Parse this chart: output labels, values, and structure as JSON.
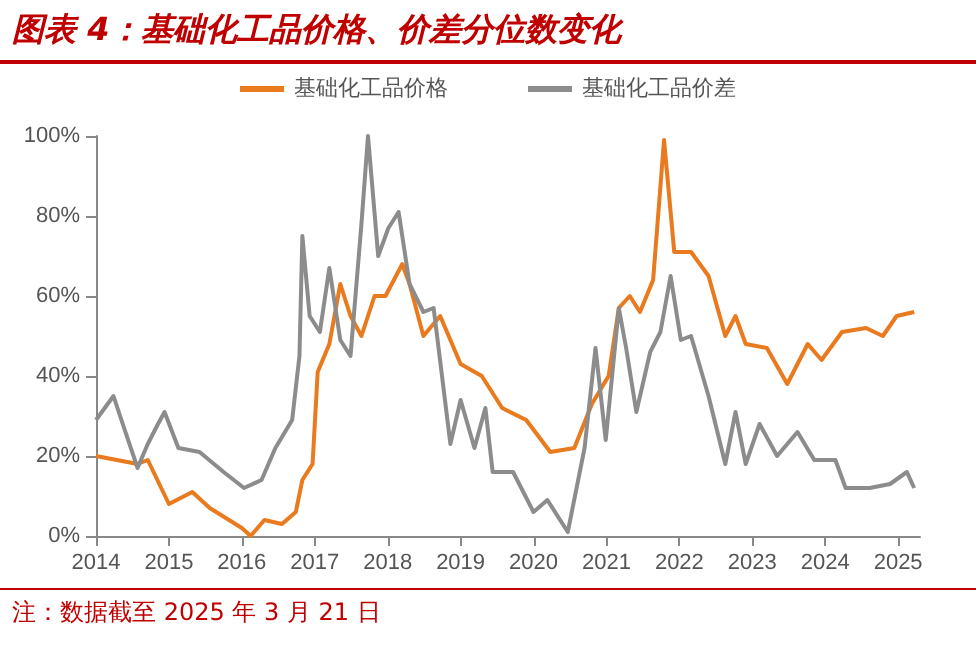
{
  "chart_data": {
    "type": "line",
    "title": "图表 4：基础化工品价格、价差分位数变化",
    "annotations": [
      "注：数据截至 2025 年 3 月 21 日"
    ],
    "xlim": [
      2014,
      2025.3
    ],
    "xticks": [
      2014,
      2015,
      2016,
      2017,
      2018,
      2019,
      2020,
      2021,
      2022,
      2023,
      2024,
      2025
    ],
    "ylim": [
      0,
      100
    ],
    "yticks": [
      {
        "value": 0,
        "label": "0%"
      },
      {
        "value": 20,
        "label": "20%"
      },
      {
        "value": 40,
        "label": "40%"
      },
      {
        "value": 60,
        "label": "60%"
      },
      {
        "value": 80,
        "label": "80%"
      },
      {
        "value": 100,
        "label": "100%"
      }
    ],
    "grid": false,
    "legend": "top",
    "marker": "none",
    "line_style": "solid",
    "series": [
      {
        "name": "基础化工品价格",
        "color": "#e97a1e",
        "x": [
          2014.0,
          2014.57,
          2014.71,
          2015.0,
          2015.32,
          2015.56,
          2016.0,
          2016.12,
          2016.31,
          2016.55,
          2016.74,
          2016.83,
          2016.97,
          2017.04,
          2017.2,
          2017.35,
          2017.49,
          2017.64,
          2017.82,
          2017.97,
          2018.2,
          2018.3,
          2018.49,
          2018.72,
          2019.0,
          2019.29,
          2019.57,
          2019.9,
          2020.23,
          2020.56,
          2020.8,
          2021.03,
          2021.17,
          2021.32,
          2021.46,
          2021.64,
          2021.79,
          2021.93,
          2022.16,
          2022.4,
          2022.63,
          2022.77,
          2022.91,
          2023.2,
          2023.48,
          2023.76,
          2023.95,
          2024.23,
          2024.56,
          2024.79,
          2024.98,
          2025.22
        ],
        "values": [
          20,
          18,
          19,
          8,
          11,
          7,
          2,
          0,
          4,
          3,
          6,
          14,
          18,
          41,
          48,
          63,
          55,
          50,
          60,
          60,
          68,
          63,
          50,
          55,
          43,
          40,
          32,
          29,
          21,
          22,
          33,
          40,
          57,
          60,
          56,
          64,
          99,
          71,
          71,
          65,
          50,
          55,
          48,
          47,
          38,
          48,
          44,
          51,
          52,
          50,
          55,
          56
        ]
      },
      {
        "name": "基础化工品价差",
        "color": "#8c8c8c",
        "x": [
          2014.0,
          2014.24,
          2014.33,
          2014.57,
          2014.71,
          2014.85,
          2014.94,
          2015.13,
          2015.42,
          2015.75,
          2016.03,
          2016.27,
          2016.46,
          2016.69,
          2016.79,
          2016.83,
          2016.93,
          2017.07,
          2017.2,
          2017.35,
          2017.49,
          2017.64,
          2017.73,
          2017.87,
          2018.01,
          2018.15,
          2018.3,
          2018.49,
          2018.63,
          2018.86,
          2019.0,
          2019.19,
          2019.34,
          2019.44,
          2019.72,
          2020.0,
          2020.19,
          2020.47,
          2020.7,
          2020.85,
          2020.99,
          2021.17,
          2021.27,
          2021.41,
          2021.6,
          2021.74,
          2021.88,
          2022.02,
          2022.16,
          2022.4,
          2022.63,
          2022.77,
          2022.91,
          2023.1,
          2023.34,
          2023.62,
          2023.85,
          2024.14,
          2024.28,
          2024.61,
          2024.89,
          2025.12,
          2025.22
        ],
        "values": [
          29,
          35,
          30,
          17,
          23,
          28,
          31,
          22,
          21,
          16,
          12,
          14,
          22,
          29,
          45,
          75,
          55,
          51,
          67,
          49,
          45,
          78,
          100,
          70,
          77,
          81,
          63,
          56,
          57,
          23,
          34,
          22,
          32,
          16,
          16,
          6,
          9,
          1,
          22,
          47,
          24,
          57,
          47,
          31,
          46,
          51,
          65,
          49,
          50,
          35,
          18,
          31,
          18,
          28,
          20,
          26,
          19,
          19,
          12,
          12,
          13,
          16,
          12
        ]
      }
    ]
  }
}
